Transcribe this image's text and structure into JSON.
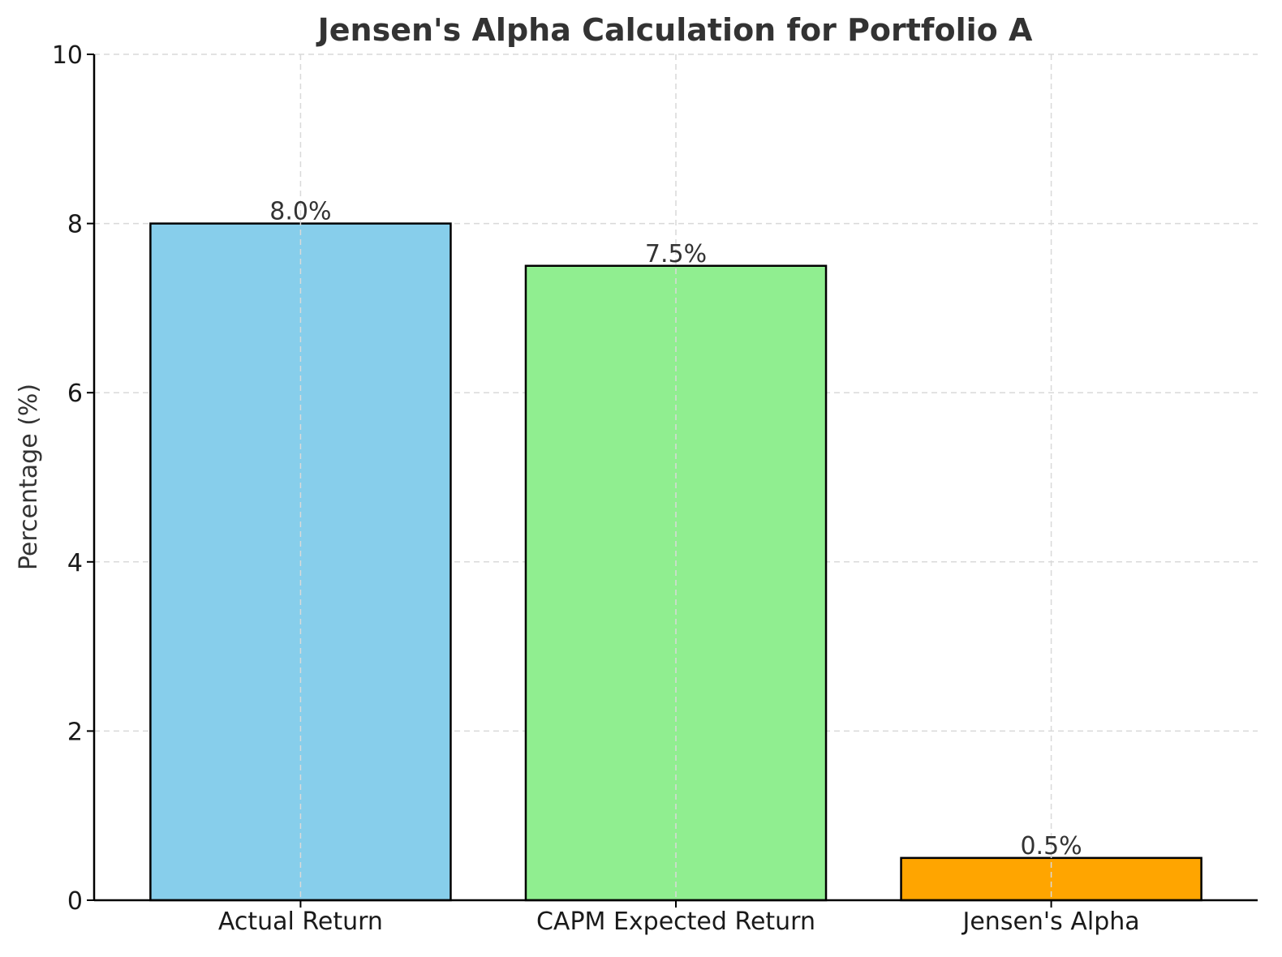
{
  "chart_data": {
    "type": "bar",
    "title": "Jensen's Alpha Calculation for Portfolio A",
    "xlabel": "",
    "ylabel": "Percentage (%)",
    "categories": [
      "Actual Return",
      "CAPM Expected Return",
      "Jensen's Alpha"
    ],
    "values": [
      8.0,
      7.5,
      0.5
    ],
    "data_labels": [
      "8.0%",
      "7.5%",
      "0.5%"
    ],
    "colors": [
      "#87ceeb",
      "#90ee90",
      "#ffa500"
    ],
    "edge_color": "#000000",
    "ylim": [
      0,
      10
    ],
    "yticks": [
      0,
      2,
      4,
      6,
      8,
      10
    ],
    "ytick_labels": [
      "0",
      "2",
      "4",
      "6",
      "8",
      "10"
    ],
    "grid": true
  }
}
